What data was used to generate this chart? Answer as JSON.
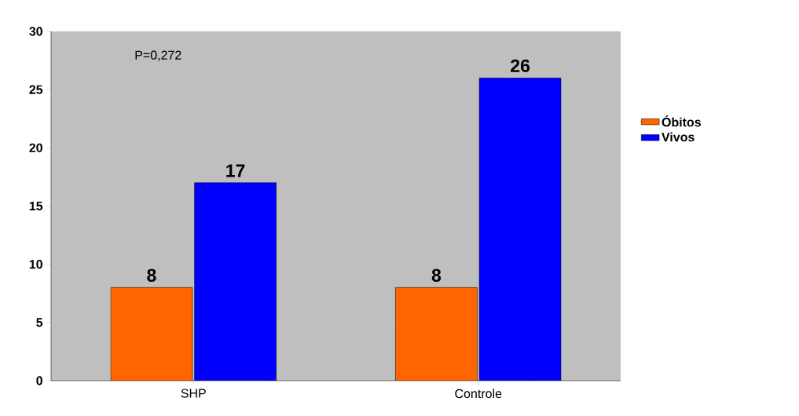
{
  "chart_data": {
    "type": "bar",
    "categories": [
      "SHP",
      "Controle"
    ],
    "series": [
      {
        "name": "Óbitos",
        "color": "#ff6600",
        "values": [
          8,
          8
        ]
      },
      {
        "name": "Vivos",
        "color": "#0000ff",
        "values": [
          17,
          26
        ]
      }
    ],
    "ylim": [
      0,
      30
    ],
    "yticks": [
      0,
      5,
      10,
      15,
      20,
      25,
      30
    ],
    "grid": "y",
    "legend": "right",
    "data_labels": true,
    "annotations": [
      "P=0,272"
    ]
  }
}
